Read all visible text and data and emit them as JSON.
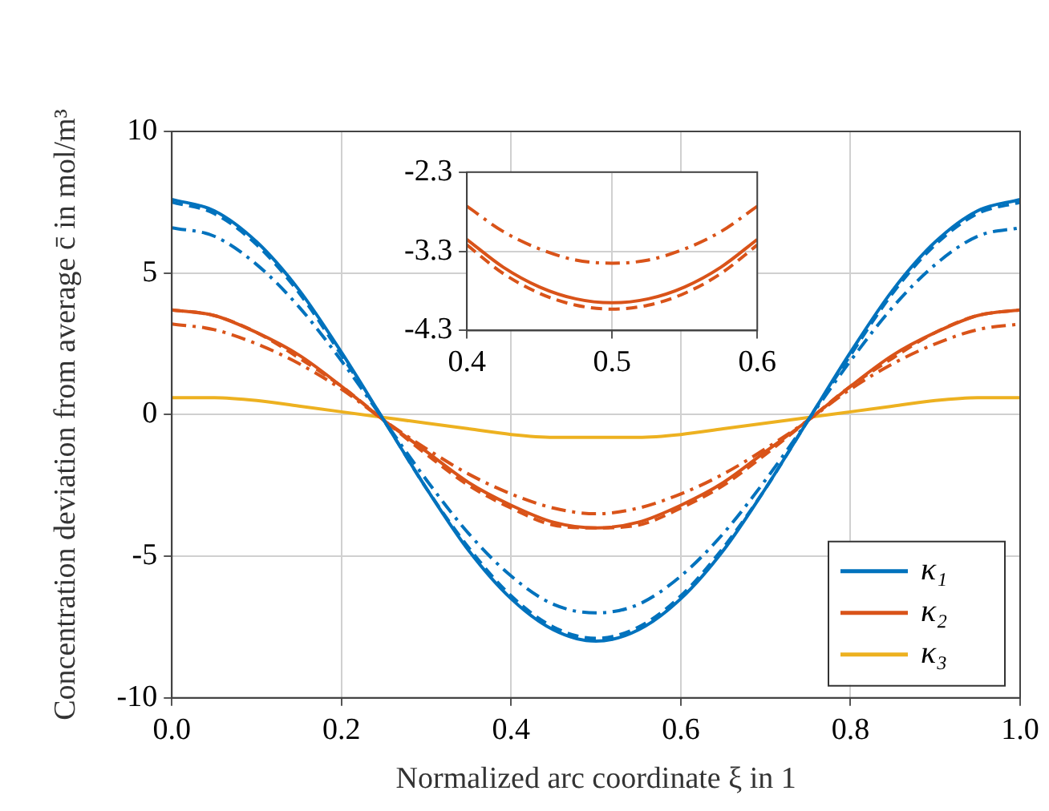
{
  "chart_data": [
    {
      "type": "line",
      "xlabel": "Normalized arc coordinate ξ in 1",
      "ylabel": "Concentration deviation from average c̄ in mol/m³",
      "x": [
        0,
        0.05,
        0.1,
        0.15,
        0.2,
        0.25,
        0.3,
        0.35,
        0.4,
        0.45,
        0.5,
        0.55,
        0.6,
        0.65,
        0.7,
        0.75,
        0.8,
        0.85,
        0.9,
        0.95,
        1
      ],
      "xlim": [
        0,
        1
      ],
      "xticks": [
        {
          "value": 0,
          "label": "0.0"
        },
        0.2,
        0.4,
        0.6,
        0.8,
        {
          "value": 1,
          "label": "1.0"
        }
      ],
      "ylim": [
        -10,
        10
      ],
      "yticks": [
        -10,
        -5,
        0,
        5,
        10
      ],
      "grid": true,
      "legend": "bottom right",
      "marker": "none",
      "series": [
        {
          "name": "κ₁",
          "color": "#0072bd",
          "line_style": "solid",
          "values": [
            7.6,
            7.2,
            6.1,
            4.4,
            2.2,
            -0.2,
            -2.6,
            -4.8,
            -6.5,
            -7.6,
            -8.0,
            -7.6,
            -6.5,
            -4.8,
            -2.6,
            -0.2,
            2.2,
            4.4,
            6.1,
            7.2,
            7.6
          ]
        },
        {
          "color": "#0072bd",
          "line_style": "dashed",
          "values": [
            7.5,
            7.1,
            6.0,
            4.3,
            2.1,
            -0.2,
            -2.6,
            -4.7,
            -6.4,
            -7.5,
            -7.9,
            -7.5,
            -6.4,
            -4.7,
            -2.6,
            -0.2,
            2.1,
            4.3,
            6.0,
            7.1,
            7.5
          ]
        },
        {
          "color": "#0072bd",
          "line_style": "dashdot",
          "values": [
            6.6,
            6.3,
            5.3,
            3.8,
            1.9,
            -0.2,
            -2.3,
            -4.2,
            -5.7,
            -6.7,
            -7.0,
            -6.7,
            -5.7,
            -4.2,
            -2.3,
            -0.2,
            1.9,
            3.8,
            5.3,
            6.3,
            6.6
          ]
        },
        {
          "name": "κ₂",
          "color": "#d95319",
          "line_style": "solid",
          "values": [
            3.7,
            3.5,
            2.9,
            2.1,
            1.0,
            -0.2,
            -1.3,
            -2.4,
            -3.2,
            -3.8,
            -4.0,
            -3.8,
            -3.2,
            -2.4,
            -1.3,
            -0.2,
            1.0,
            2.1,
            2.9,
            3.5,
            3.7
          ]
        },
        {
          "color": "#d95319",
          "line_style": "dashed",
          "values": [
            3.7,
            3.5,
            2.9,
            2.0,
            1.0,
            -0.2,
            -1.4,
            -2.5,
            -3.3,
            -3.9,
            -4.0,
            -3.9,
            -3.3,
            -2.5,
            -1.4,
            -0.2,
            1.0,
            2.0,
            2.9,
            3.5,
            3.7
          ]
        },
        {
          "color": "#d95319",
          "line_style": "dashdot",
          "values": [
            3.2,
            3.0,
            2.5,
            1.8,
            0.9,
            -0.2,
            -1.2,
            -2.1,
            -2.8,
            -3.3,
            -3.5,
            -3.3,
            -2.8,
            -2.1,
            -1.2,
            -0.2,
            0.9,
            1.8,
            2.5,
            3.0,
            3.2
          ]
        },
        {
          "name": "κ₃",
          "color": "#edb120",
          "line_style": "solid",
          "values": [
            0.6,
            0.6,
            0.5,
            0.3,
            0.1,
            -0.1,
            -0.3,
            -0.5,
            -0.7,
            -0.8,
            -0.8,
            -0.8,
            -0.7,
            -0.5,
            -0.3,
            -0.1,
            0.1,
            0.3,
            0.5,
            0.6,
            0.6
          ]
        }
      ]
    },
    {
      "type": "line",
      "x": [
        0.4,
        0.425,
        0.45,
        0.475,
        0.5,
        0.525,
        0.55,
        0.575,
        0.6
      ],
      "xlim": [
        0.4,
        0.6
      ],
      "xticks": [
        0.4,
        0.5,
        0.6
      ],
      "ylim": [
        -4.3,
        -2.3
      ],
      "yticks": [
        -4.3,
        -3.3,
        -2.3
      ],
      "grid": true,
      "marker": "none",
      "series": [
        {
          "color": "#d95319",
          "line_style": "solid",
          "values": [
            -3.15,
            -3.5,
            -3.75,
            -3.9,
            -3.95,
            -3.9,
            -3.75,
            -3.5,
            -3.15
          ]
        },
        {
          "color": "#d95319",
          "line_style": "dashed",
          "values": [
            -3.22,
            -3.58,
            -3.83,
            -3.98,
            -4.03,
            -3.98,
            -3.83,
            -3.58,
            -3.22
          ]
        },
        {
          "color": "#d95319",
          "line_style": "dashdot",
          "values": [
            -2.73,
            -3.05,
            -3.27,
            -3.41,
            -3.45,
            -3.41,
            -3.27,
            -3.05,
            -2.73
          ]
        }
      ]
    }
  ]
}
